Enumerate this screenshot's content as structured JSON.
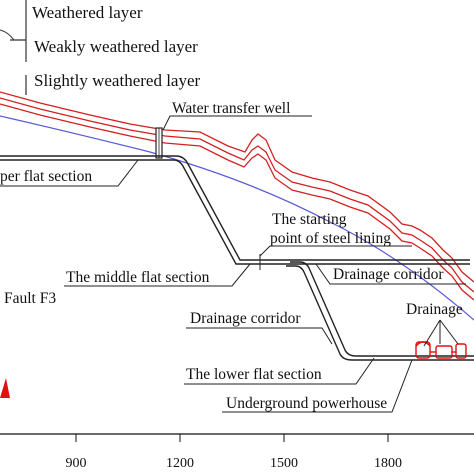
{
  "legend": {
    "items": [
      {
        "label": "Weathered layer",
        "color": "#d42020"
      },
      {
        "label": "Weakly weathered layer",
        "color": "#d42020"
      },
      {
        "label": "Slightly weathered layer",
        "color": "#d42020"
      }
    ]
  },
  "labels": {
    "water_transfer_well": "Water transfer well",
    "upper_flat_section": "per flat section",
    "steel_lining_line1": "The starting",
    "steel_lining_line2": "point of steel lining",
    "middle_flat_section": "The middle flat section",
    "drainage_corridor_upper": "Drainage corridor",
    "fault": "Fault F3",
    "drainage_corridor_lower": "Drainage corridor",
    "drainage_right": "Drainage",
    "lower_flat_section": "The lower flat section",
    "underground_powerhouse": "Underground powerhouse"
  },
  "axis": {
    "ticks": [
      "900",
      "1200",
      "1500",
      "1800"
    ]
  },
  "colors": {
    "surface_lines": "#d42020",
    "weathered_boundary": "#5a5ad8",
    "tunnel": "#222222",
    "fault_marker": "#e01010"
  }
}
